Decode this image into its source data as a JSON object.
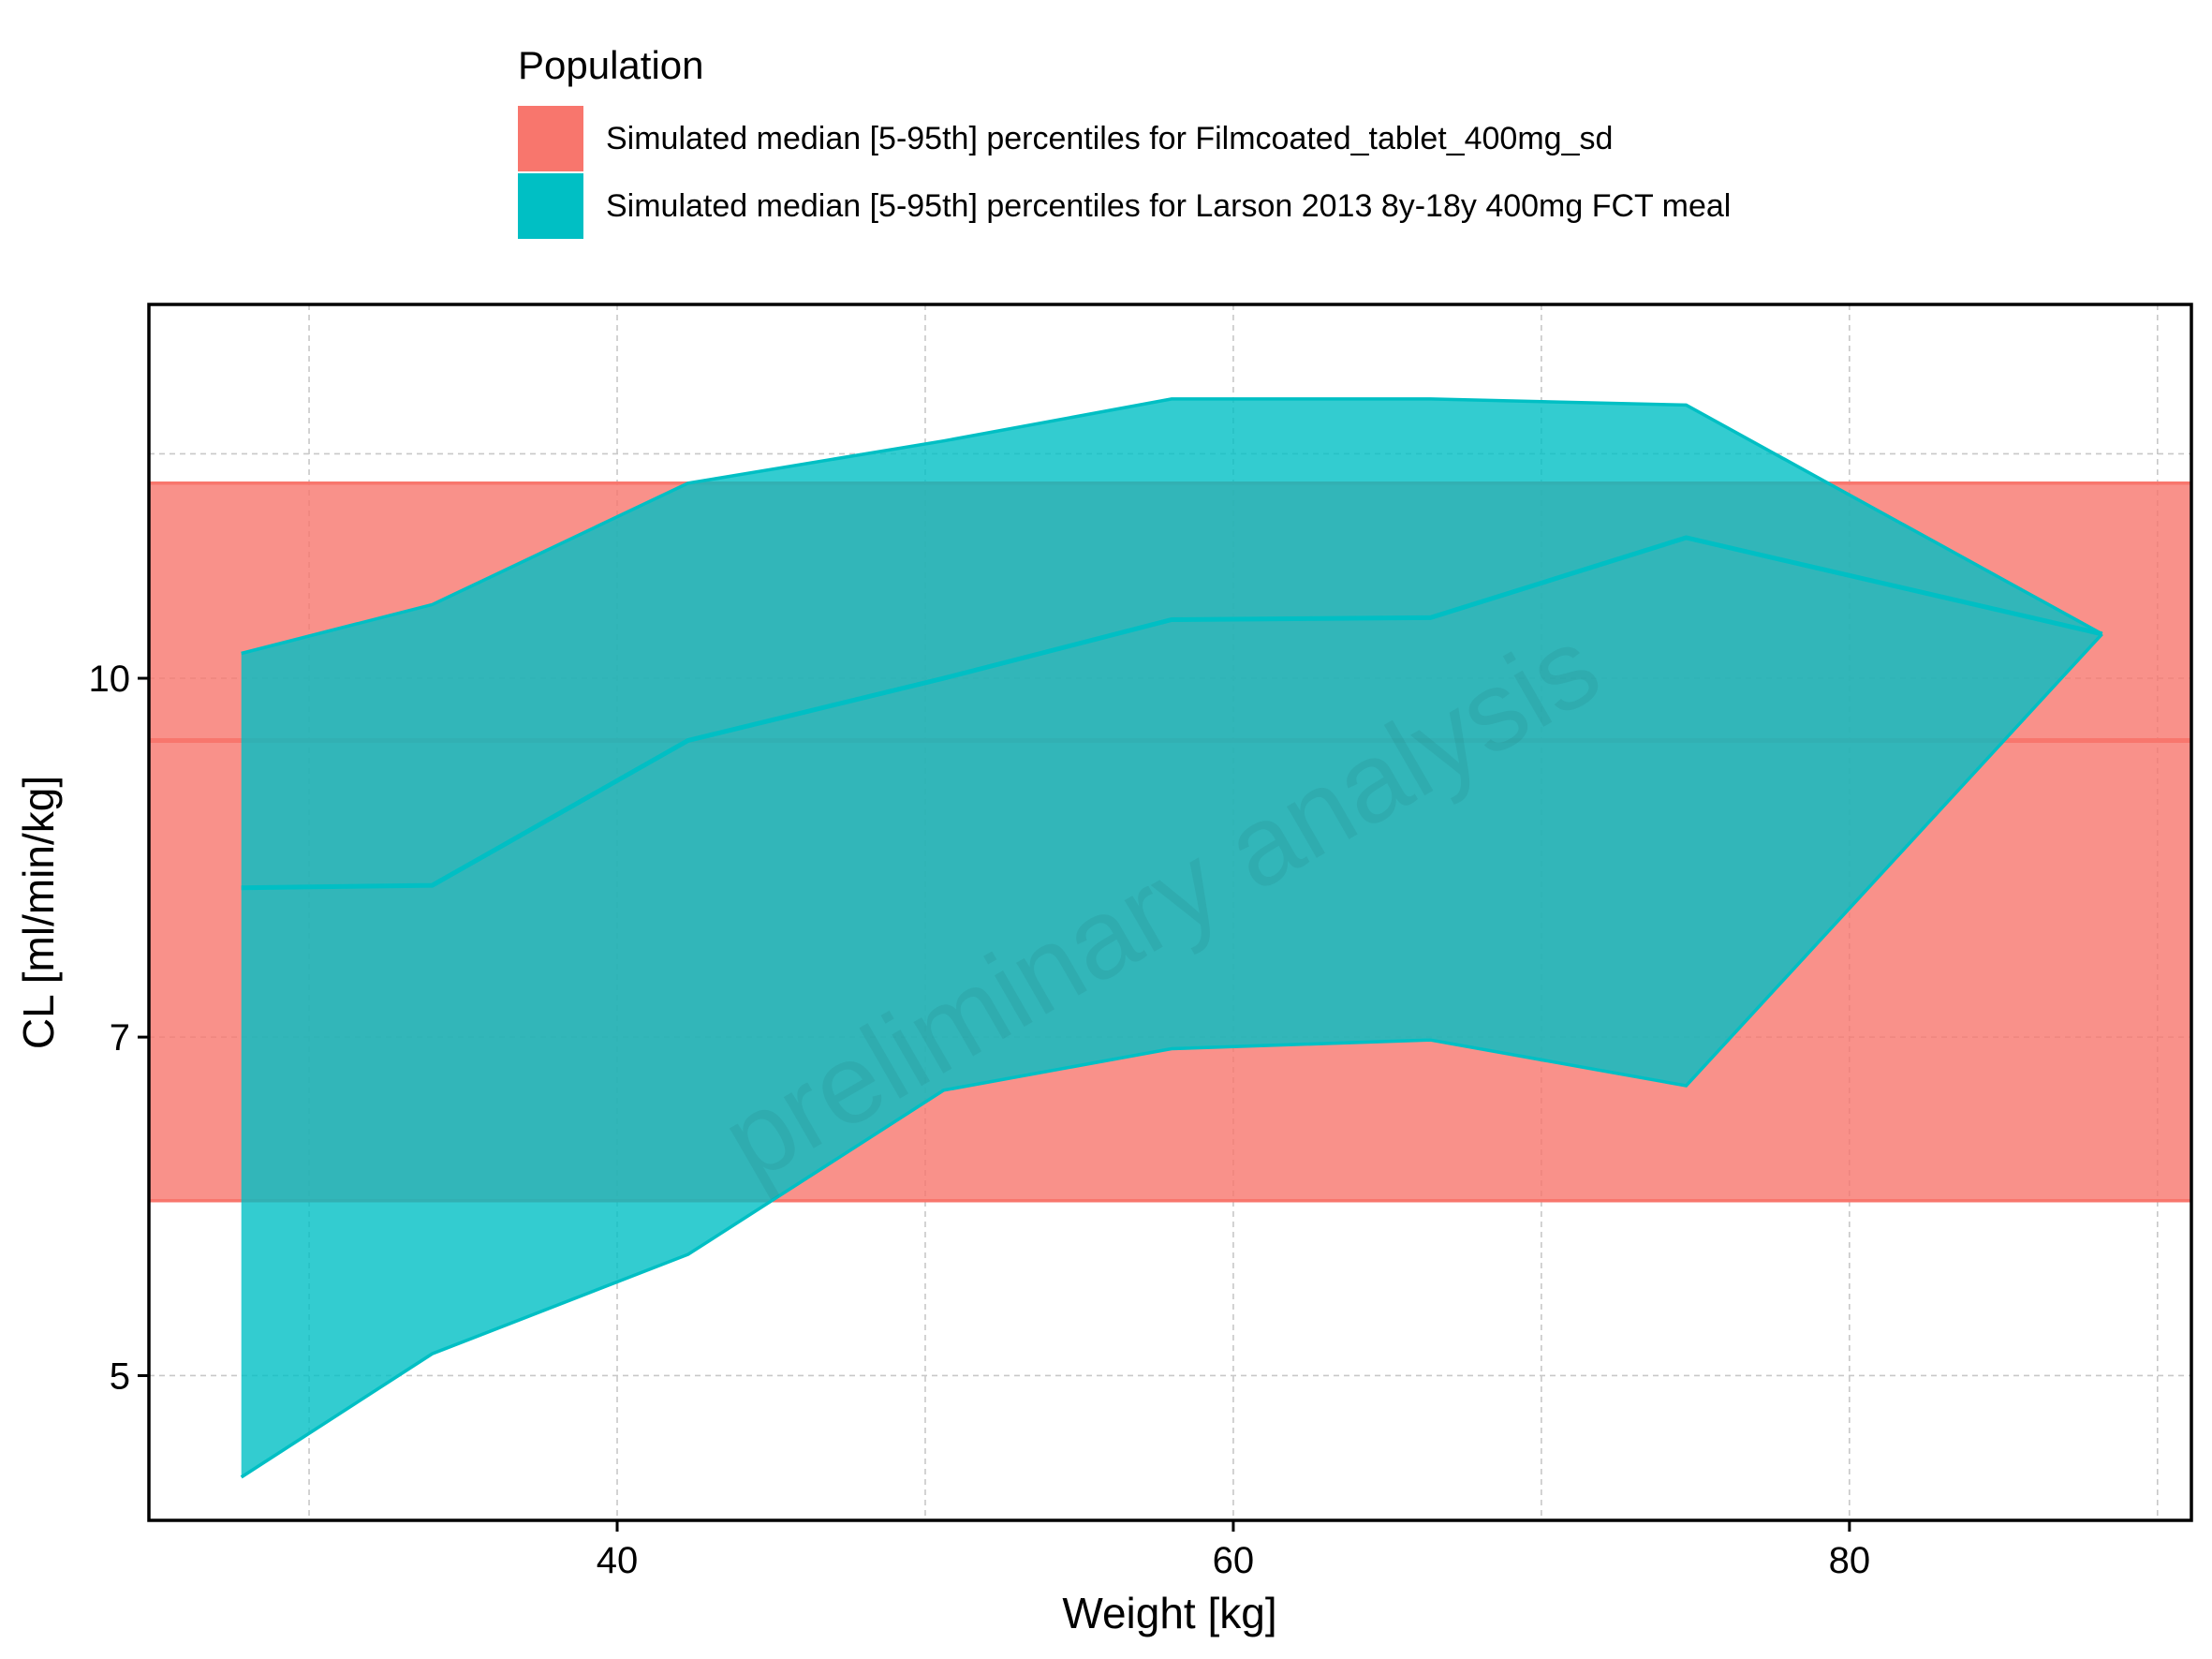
{
  "chart_data": {
    "type": "area",
    "xlabel": "Weight [kg]",
    "ylabel": "CL [ml/min/kg]",
    "y_scale": "log",
    "xlim": [
      24.8,
      91.1
    ],
    "ylim": [
      4.33,
      14.5
    ],
    "x_ticks": [
      40,
      60,
      80
    ],
    "x_tick_labels": [
      "40",
      "60",
      "80"
    ],
    "x_minor_ticks": [
      30,
      50,
      70,
      90
    ],
    "y_ticks": [
      5,
      7,
      10
    ],
    "y_tick_labels": [
      "5",
      "7",
      "10"
    ],
    "y_minor_ticks": [
      12.5
    ],
    "grid": true,
    "watermark": "preliminary analysis",
    "legend": {
      "title": "Population",
      "position": "top",
      "entries": [
        {
          "label": "Simulated median [5-95th] percentiles for Filmcoated_tablet_400mg_sd",
          "color": "#F8766D"
        },
        {
          "label": "Simulated median [5-95th] percentiles for Larson 2013 8y-18y 400mg FCT meal",
          "color": "#00BFC4"
        }
      ]
    },
    "series": [
      {
        "name": "Simulated median [5-95th] percentiles for Filmcoated_tablet_400mg_sd",
        "color": "#F8766D",
        "fill_opacity": 0.8,
        "x": [
          24.8,
          91.1
        ],
        "median": [
          9.4,
          9.4
        ],
        "lower": [
          5.95,
          5.95
        ],
        "upper": [
          12.14,
          12.14
        ]
      },
      {
        "name": "Simulated median [5-95th] percentiles for Larson 2013 8y-18y 400mg FCT meal",
        "color": "#00BFC4",
        "fill_opacity": 0.8,
        "x": [
          27.8,
          34.0,
          42.3,
          50.6,
          58.0,
          66.4,
          74.7,
          88.2
        ],
        "median": [
          8.12,
          8.14,
          9.4,
          10.0,
          10.6,
          10.62,
          11.5,
          10.45
        ],
        "lower": [
          4.52,
          5.11,
          5.64,
          6.64,
          6.92,
          6.98,
          6.67,
          10.45
        ],
        "upper": [
          10.25,
          10.76,
          12.14,
          12.66,
          13.2,
          13.2,
          13.12,
          10.45
        ]
      }
    ]
  }
}
